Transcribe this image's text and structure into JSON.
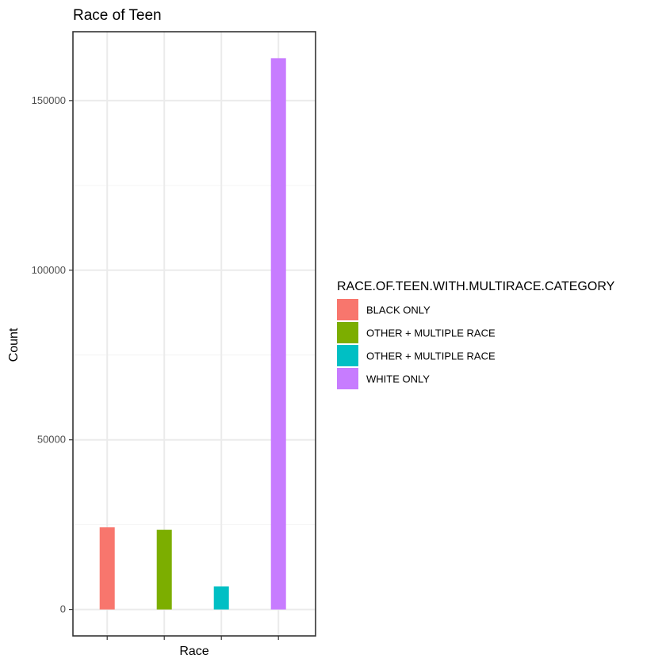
{
  "chart_data": {
    "type": "bar",
    "title": "Race of Teen",
    "xlabel": "Race",
    "ylabel": "Count",
    "categories": [
      "",
      "",
      "",
      ""
    ],
    "values": [
      24200,
      23500,
      6800,
      162500
    ],
    "bar_colors": [
      "#F8766D",
      "#7CAE00",
      "#00BFC4",
      "#C77CFF"
    ],
    "ylim": [
      -7800,
      170300
    ],
    "yticks": [
      0,
      50000,
      100000,
      150000
    ],
    "ytick_labels": [
      "0",
      "50000",
      "100000",
      "150000"
    ],
    "grid": true,
    "legend": {
      "title": "RACE.OF.TEEN.WITH.MULTIRACE.CATEGORY",
      "position": "right",
      "entries": [
        {
          "label": "BLACK ONLY",
          "color": "#F8766D"
        },
        {
          "label": "OTHER + MULTIPLE RACE",
          "color": "#7CAE00"
        },
        {
          "label": "OTHER + MULTIPLE RACE",
          "color": "#00BFC4"
        },
        {
          "label": "WHITE ONLY",
          "color": "#C77CFF"
        }
      ]
    },
    "colors": {
      "grid_major": "#EBEBEB",
      "grid_minor": "#F4F4F4",
      "panel_border": "#333333",
      "text": "#000000",
      "tick_text": "#4D4D4D"
    }
  }
}
